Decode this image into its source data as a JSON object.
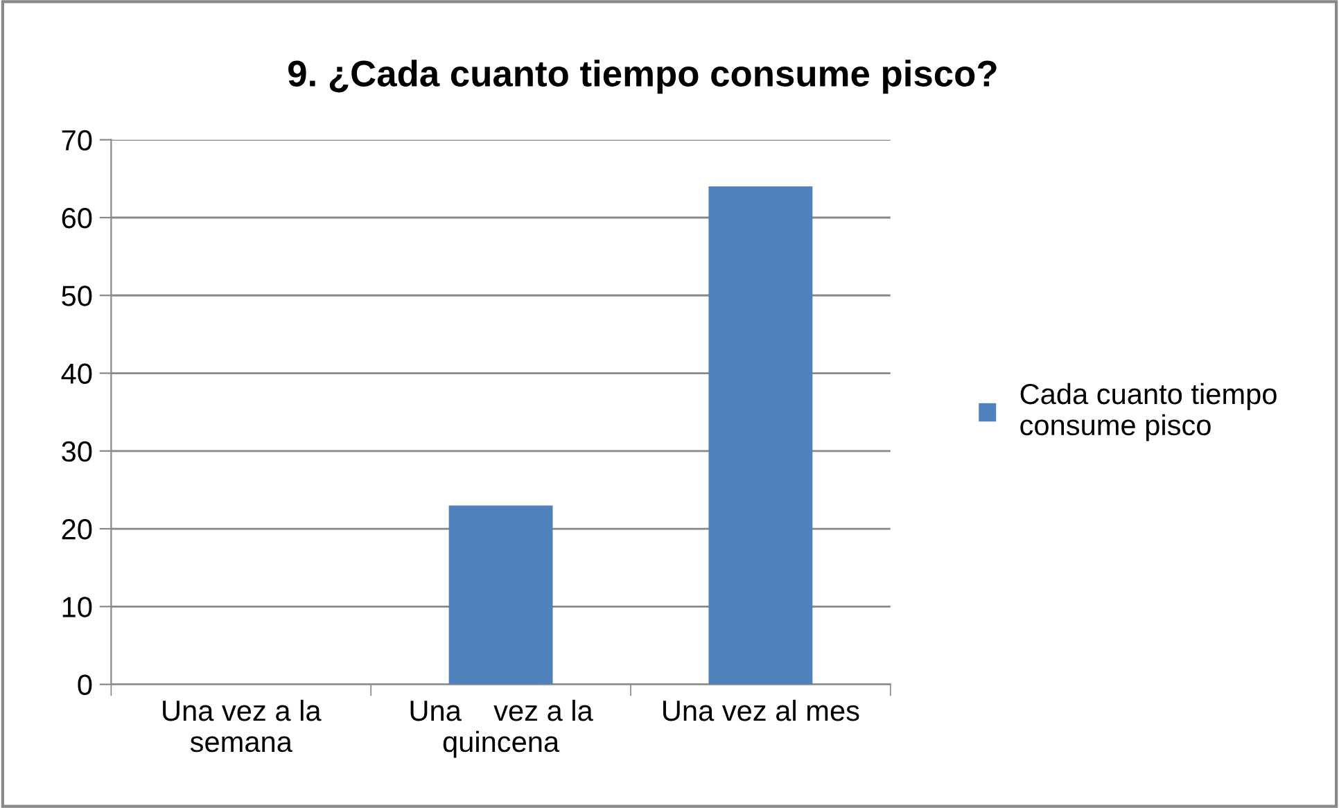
{
  "chart_data": {
    "type": "bar",
    "title": "9. ¿Cada cuanto tiempo consume pisco?",
    "categories": [
      "Una vez a la\nsemana",
      "Una    vez a la\nquincena",
      "Una vez al mes"
    ],
    "series": [
      {
        "name": "Cada cuanto tiempo\nconsume pisco",
        "color": "#4f81bd",
        "values": [
          0,
          23,
          64
        ]
      }
    ],
    "ylim": [
      0,
      70
    ],
    "yticks": [
      0,
      10,
      20,
      30,
      40,
      50,
      60,
      70
    ],
    "grid": "y",
    "legend": "right"
  }
}
